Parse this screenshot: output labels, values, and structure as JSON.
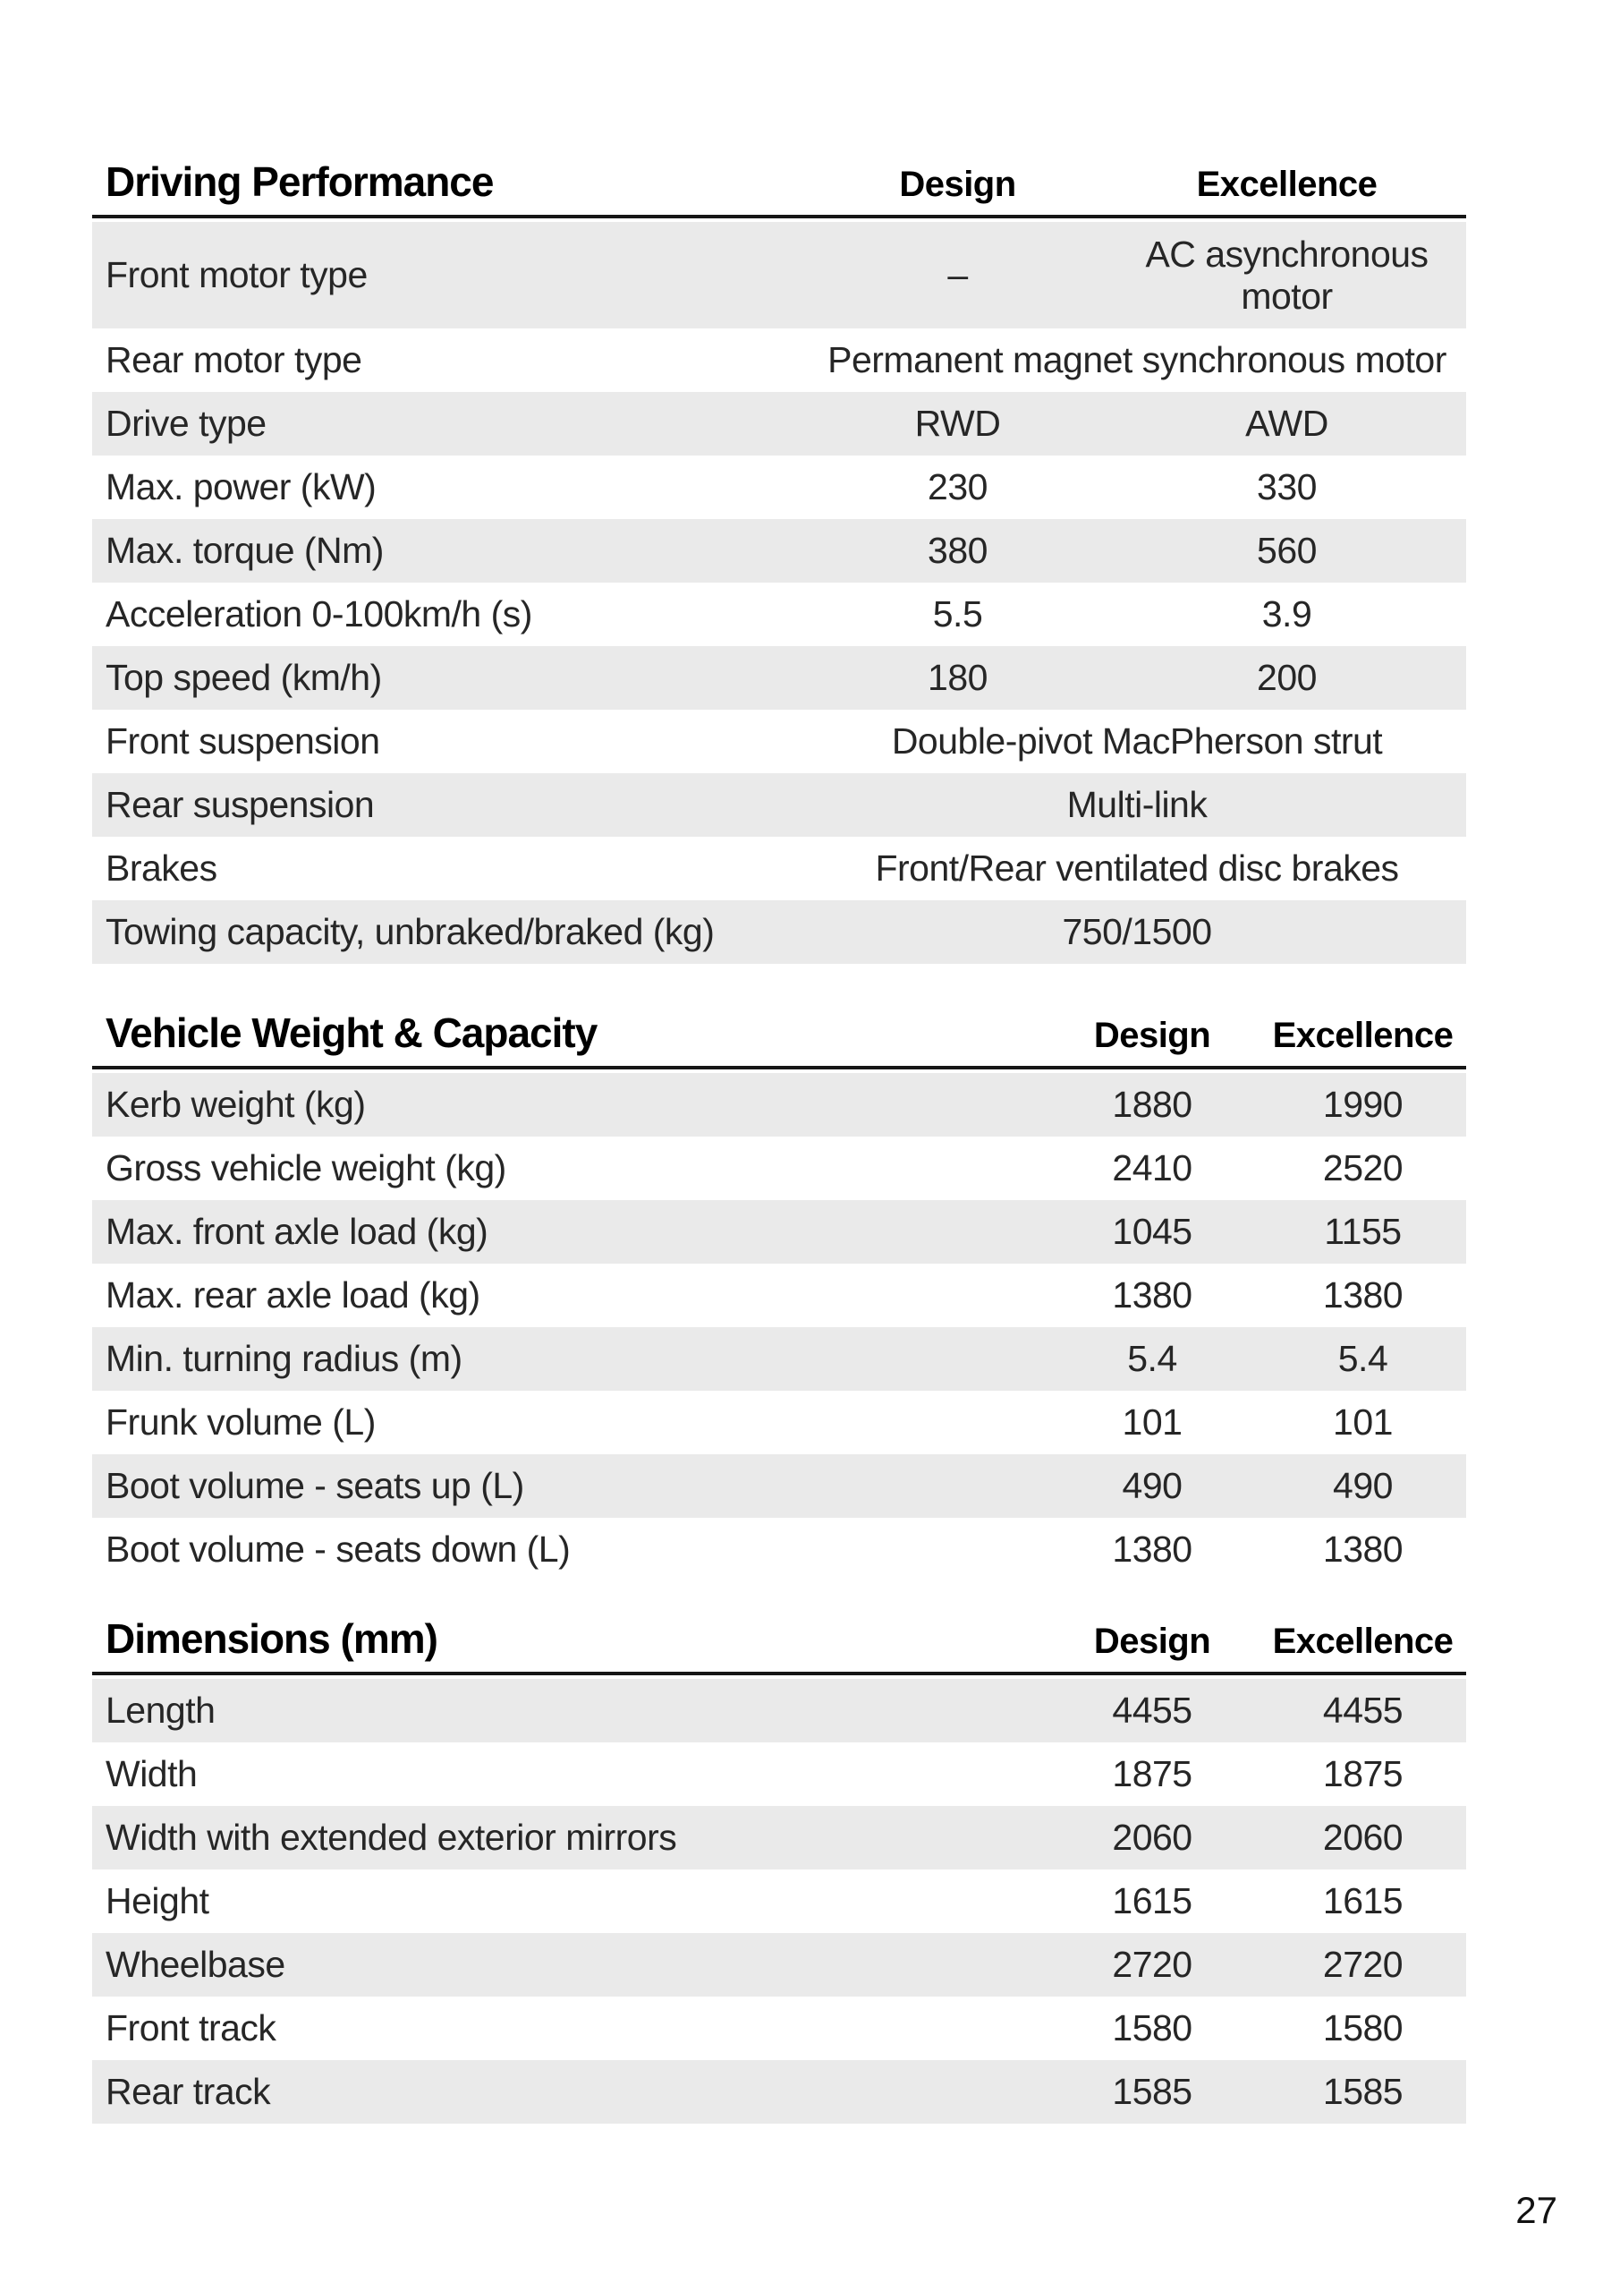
{
  "page_number": "27",
  "colors": {
    "row_stripe": "#eaeaea",
    "rule": "#161616",
    "body_text": "#262626",
    "heading_text": "#000000"
  },
  "tables": [
    {
      "title": "Driving Performance",
      "col_design": "Design",
      "col_excellence": "Excellence",
      "rows": [
        {
          "label": "Front motor type",
          "design": "–",
          "excellence": "AC asynchronous motor"
        },
        {
          "label": "Rear motor type",
          "span": "Permanent magnet synchronous motor"
        },
        {
          "label": "Drive type",
          "design": "RWD",
          "excellence": "AWD"
        },
        {
          "label": "Max. power (kW)",
          "design": "230",
          "excellence": "330"
        },
        {
          "label": "Max. torque (Nm)",
          "design": "380",
          "excellence": "560"
        },
        {
          "label": "Acceleration 0-100km/h (s)",
          "design": "5.5",
          "excellence": "3.9"
        },
        {
          "label": "Top speed (km/h)",
          "design": "180",
          "excellence": "200"
        },
        {
          "label": "Front suspension",
          "span": "Double-pivot MacPherson strut"
        },
        {
          "label": "Rear suspension",
          "span": "Multi-link"
        },
        {
          "label": "Brakes",
          "span": "Front/Rear ventilated disc brakes"
        },
        {
          "label": "Towing capacity, unbraked/braked (kg)",
          "span": "750/1500"
        }
      ]
    },
    {
      "title": "Vehicle Weight & Capacity",
      "col_design": "Design",
      "col_excellence": "Excellence",
      "rows": [
        {
          "label": "Kerb weight (kg)",
          "design": "1880",
          "excellence": "1990"
        },
        {
          "label": "Gross vehicle weight (kg)",
          "design": "2410",
          "excellence": "2520"
        },
        {
          "label": "Max. front axle load (kg)",
          "design": "1045",
          "excellence": "1155"
        },
        {
          "label": "Max. rear axle load (kg)",
          "design": "1380",
          "excellence": "1380"
        },
        {
          "label": "Min. turning radius (m)",
          "design": "5.4",
          "excellence": "5.4"
        },
        {
          "label": "Frunk volume (L)",
          "design": "101",
          "excellence": "101"
        },
        {
          "label": "Boot volume - seats up (L)",
          "design": "490",
          "excellence": "490"
        },
        {
          "label": "Boot volume - seats down (L)",
          "design": "1380",
          "excellence": "1380"
        }
      ]
    },
    {
      "title": "Dimensions (mm)",
      "col_design": "Design",
      "col_excellence": "Excellence",
      "rows": [
        {
          "label": "Length",
          "design": "4455",
          "excellence": "4455"
        },
        {
          "label": "Width",
          "design": "1875",
          "excellence": "1875"
        },
        {
          "label": "Width with extended exterior mirrors",
          "design": "2060",
          "excellence": "2060"
        },
        {
          "label": "Height",
          "design": "1615",
          "excellence": "1615"
        },
        {
          "label": "Wheelbase",
          "design": "2720",
          "excellence": "2720"
        },
        {
          "label": "Front track",
          "design": "1580",
          "excellence": "1580"
        },
        {
          "label": "Rear track",
          "design": "1585",
          "excellence": "1585"
        }
      ]
    }
  ]
}
